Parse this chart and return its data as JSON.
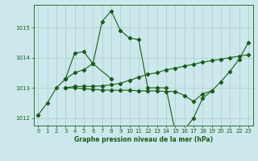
{
  "xlabel": "Graphe pression niveau de la mer (hPa)",
  "background_color": "#cce8ec",
  "grid_color": "#aacccc",
  "line_color": "#1a5c1a",
  "ylim": [
    1011.75,
    1015.75
  ],
  "xlim": [
    -0.5,
    23.5
  ],
  "yticks": [
    1012,
    1013,
    1014,
    1015
  ],
  "xticks": [
    0,
    1,
    2,
    3,
    4,
    5,
    6,
    7,
    8,
    9,
    10,
    11,
    12,
    13,
    14,
    15,
    16,
    17,
    18,
    19,
    20,
    21,
    22,
    23
  ],
  "s1_x": [
    0,
    1,
    2,
    3,
    4,
    5,
    6,
    7,
    8,
    9,
    10,
    11,
    12,
    13,
    14,
    15,
    16,
    17,
    18,
    19,
    20,
    21,
    22,
    23
  ],
  "s1_y": [
    1012.1,
    1012.5,
    1013.0,
    1013.3,
    1013.5,
    1013.6,
    1013.8,
    1015.2,
    1015.55,
    1014.9,
    1014.65,
    1014.6,
    1013.0,
    1013.0,
    1013.0,
    1011.55,
    1011.6,
    1012.0,
    1012.65,
    1012.9,
    1013.2,
    1013.55,
    1013.95,
    1014.5
  ],
  "s2_x": [
    3,
    4,
    5,
    6,
    8
  ],
  "s2_y": [
    1013.3,
    1014.15,
    1014.2,
    1013.8,
    1013.3
  ],
  "s3_x": [
    3,
    4,
    5,
    6,
    7,
    8,
    9,
    10,
    11,
    12,
    13,
    14,
    15,
    16,
    17,
    18,
    19,
    20,
    21,
    22,
    23
  ],
  "s3_y": [
    1013.0,
    1013.05,
    1013.05,
    1013.05,
    1013.07,
    1013.1,
    1013.15,
    1013.25,
    1013.35,
    1013.45,
    1013.5,
    1013.6,
    1013.65,
    1013.72,
    1013.78,
    1013.85,
    1013.9,
    1013.95,
    1014.0,
    1014.05,
    1014.1
  ],
  "s4_x": [
    3,
    4,
    5,
    6,
    7,
    8,
    9,
    10,
    11,
    12,
    13,
    14,
    15,
    16,
    17,
    18,
    19
  ],
  "s4_y": [
    1013.0,
    1013.0,
    1012.97,
    1012.95,
    1012.93,
    1012.92,
    1012.92,
    1012.92,
    1012.9,
    1012.9,
    1012.9,
    1012.88,
    1012.88,
    1012.75,
    1012.55,
    1012.8,
    1012.9
  ],
  "xlabel_fontsize": 5.5,
  "tick_fontsize": 5.0,
  "linewidth": 0.8,
  "markersize": 2.2
}
